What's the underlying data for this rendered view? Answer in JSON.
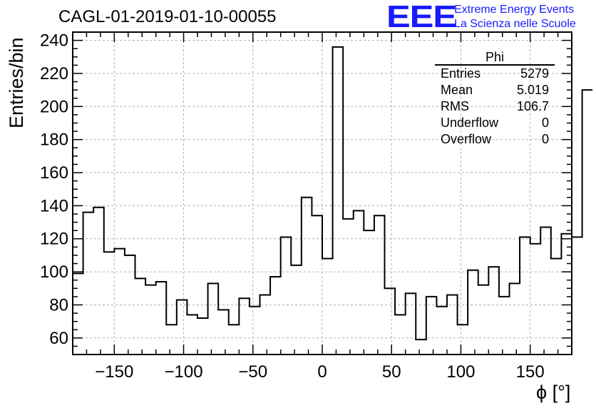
{
  "title": "CAGL-01-2019-01-10-00055",
  "logo": {
    "mark": "EEE",
    "line1": "Extreme Energy Events",
    "line2": "La Scienza nelle Scuole",
    "color": "#1a1aff"
  },
  "stats": {
    "title": "Phi",
    "rows": [
      {
        "label": "Entries",
        "value": "5279"
      },
      {
        "label": "Mean",
        "value": "5.019"
      },
      {
        "label": "RMS",
        "value": "106.7"
      },
      {
        "label": "Underflow",
        "value": "0"
      },
      {
        "label": "Overflow",
        "value": "0"
      }
    ]
  },
  "chart_data": {
    "type": "bar",
    "style": "step-histogram",
    "xlabel": "ϕ [°]",
    "ylabel": "Entries/bin",
    "xlim": [
      -180,
      180
    ],
    "ylim": [
      50,
      245
    ],
    "bin_width": 7.5,
    "grid": true,
    "x_ticks": [
      "−150",
      "−100",
      "−50",
      "0",
      "50",
      "100",
      "150"
    ],
    "x_tick_values": [
      -150,
      -100,
      -50,
      0,
      50,
      100,
      150
    ],
    "y_ticks": [
      "60",
      "80",
      "100",
      "120",
      "140",
      "160",
      "180",
      "200",
      "220",
      "240"
    ],
    "y_tick_values": [
      60,
      80,
      100,
      120,
      140,
      160,
      180,
      200,
      220,
      240
    ],
    "values": [
      99,
      136,
      139,
      112,
      114,
      110,
      96,
      92,
      94,
      68,
      83,
      74,
      72,
      93,
      77,
      68,
      84,
      79,
      86,
      97,
      121,
      104,
      145,
      134,
      108,
      236,
      132,
      137,
      125,
      134,
      90,
      74,
      87,
      59,
      85,
      79,
      86,
      68,
      101,
      92,
      103,
      85,
      93,
      121,
      117,
      127,
      108,
      123,
      121,
      210
    ]
  }
}
